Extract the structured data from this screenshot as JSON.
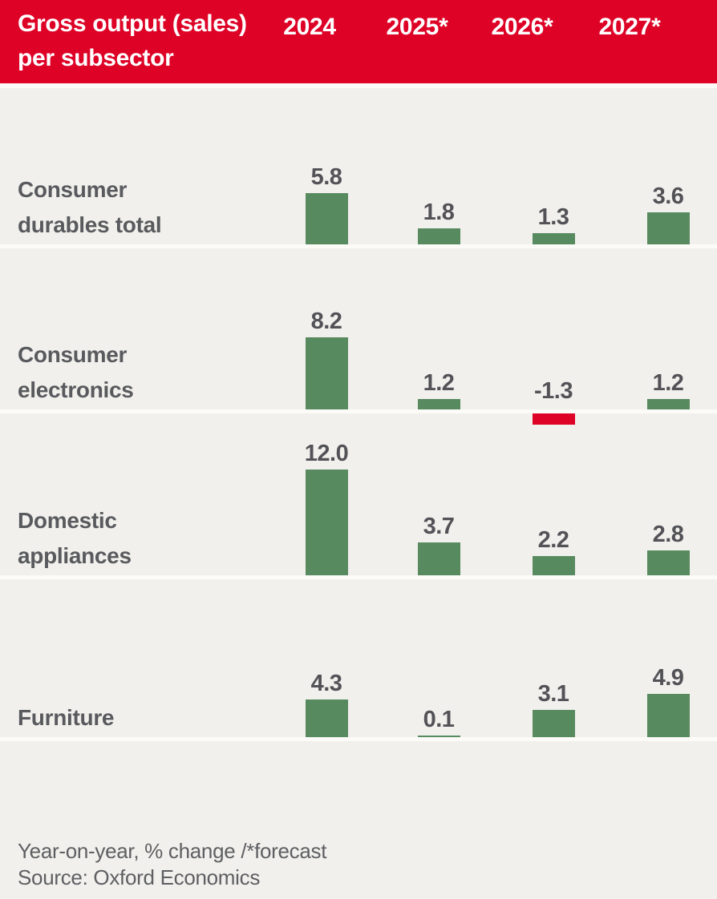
{
  "header": {
    "title": "Gross output (sales)\nper subsector"
  },
  "footer": {
    "note": "Year-on-year, % change /*forecast",
    "source": "Source: Oxford Economics"
  },
  "colors": {
    "header_background": "#dd0226",
    "positive_bar": "#588a60",
    "negative_bar": "#dd0226",
    "chart_background": "#f1f0ec"
  },
  "chart_data": {
    "type": "bar",
    "title": "Gross output (sales) per subsector",
    "value_note": "Year-on-year, % change /*forecast",
    "source": "Source: Oxford Economics",
    "categories": [
      "2024",
      "2025*",
      "2026*",
      "2027*"
    ],
    "series": [
      {
        "name": "Consumer durables total",
        "label_lines": "Consumer\ndurables total",
        "values": [
          5.8,
          1.8,
          1.3,
          3.6
        ]
      },
      {
        "name": "Consumer electronics",
        "label_lines": "Consumer\nelectronics",
        "values": [
          8.2,
          1.2,
          -1.3,
          1.2
        ]
      },
      {
        "name": "Domestic appliances",
        "label_lines": "Domestic\nappliances",
        "values": [
          12.0,
          3.7,
          2.2,
          2.8
        ]
      },
      {
        "name": "Furniture",
        "label_lines": "Furniture",
        "values": [
          4.3,
          0.1,
          3.1,
          4.9
        ]
      }
    ],
    "legend": "none",
    "grid": "off",
    "bar_color_positive": "#588a60",
    "bar_color_negative": "#dd0226"
  }
}
